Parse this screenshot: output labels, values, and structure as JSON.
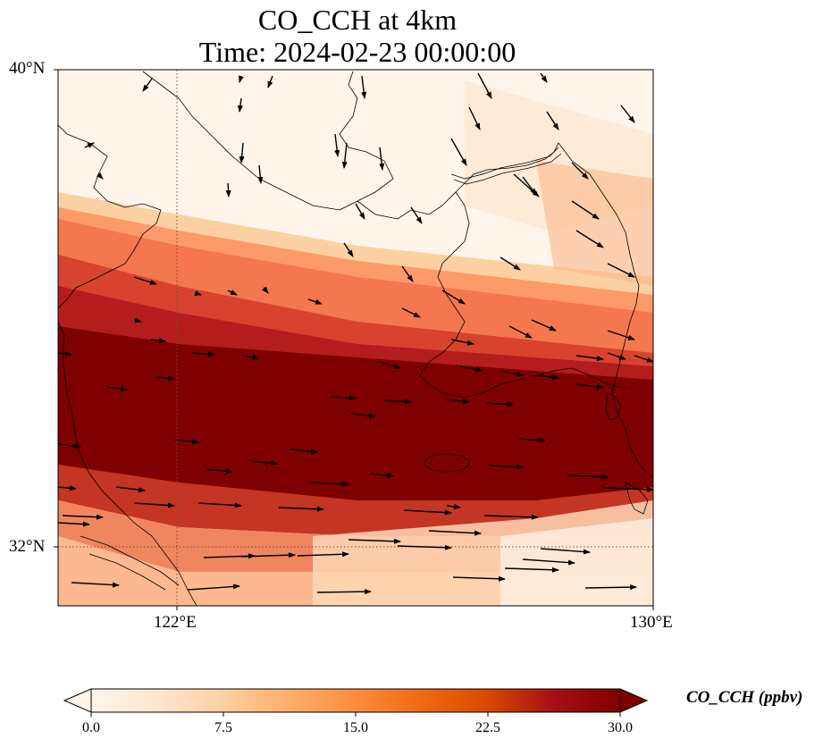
{
  "title_line1": "CO_CCH at 4km",
  "title_line2": "Time: 2024-02-23 00:00:00",
  "axes": {
    "lat_labels": [
      "40°N",
      "32°N"
    ],
    "lon_labels": [
      "122°E",
      "130°E"
    ],
    "lon_range": [
      120,
      130
    ],
    "lat_range": [
      31,
      40
    ]
  },
  "colorbar": {
    "label": "CO_CCH (ppbv)",
    "ticks": [
      "0.0",
      "7.5",
      "15.0",
      "22.5",
      "30.0"
    ],
    "min": 0,
    "max": 30,
    "extend": "both",
    "colormap": [
      "#fff5eb",
      "#fee6ce",
      "#fdd0a2",
      "#fdae6b",
      "#fd8d3c",
      "#f16913",
      "#d94801",
      "#a50f15",
      "#7f0000"
    ]
  },
  "field": {
    "description_colors": {
      "low": "#fff5eb",
      "high": "#7f0000"
    }
  }
}
